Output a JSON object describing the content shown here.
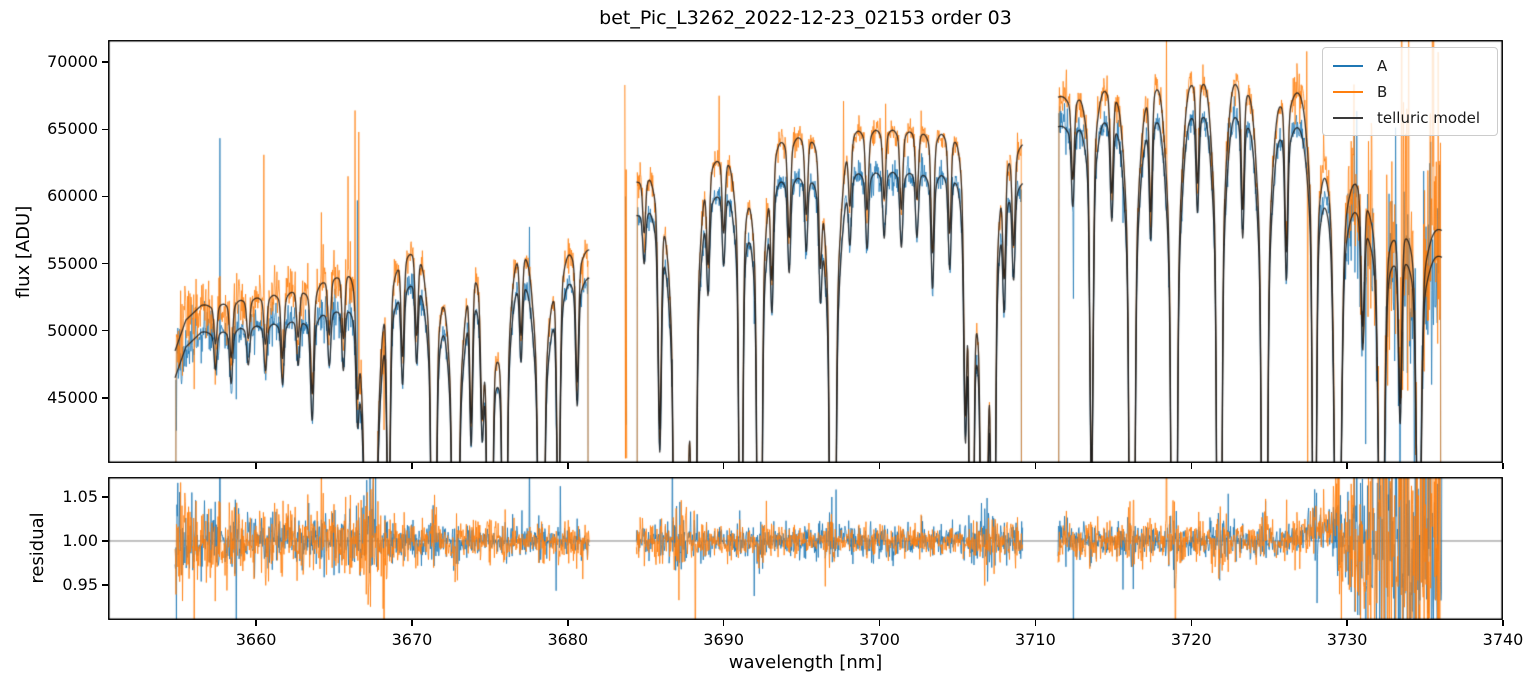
{
  "chart_data": {
    "type": "line",
    "title": "bet_Pic_L3262_2022-12-23_02153  order 03",
    "xlabel": "wavelength [nm]",
    "xlim": [
      3650.5,
      3740
    ],
    "xticks": {
      "values": [
        3660,
        3670,
        3680,
        3690,
        3700,
        3710,
        3720,
        3730,
        3740
      ],
      "labels": [
        "3660",
        "3670",
        "3680",
        "3690",
        "3700",
        "3710",
        "3720",
        "3730",
        "3740"
      ]
    },
    "panels": {
      "flux": {
        "ylabel": "flux [ADU]",
        "ylim": [
          40150,
          71650
        ],
        "yticks": {
          "values": [
            45000,
            50000,
            55000,
            60000,
            65000,
            70000
          ],
          "labels": [
            "45000",
            "50000",
            "55000",
            "60000",
            "65000",
            "70000"
          ]
        }
      },
      "residual": {
        "ylabel": "residual",
        "ylim": [
          0.9102,
          1.0727
        ],
        "yticks": {
          "values": [
            0.95,
            1.0,
            1.05
          ],
          "labels": [
            "0.95",
            "1.00",
            "1.05"
          ]
        },
        "hline": 1.0,
        "hline_color": "#808080"
      }
    },
    "series": [
      {
        "name": "A",
        "color": "#1f77b4",
        "lw": 0.8
      },
      {
        "name": "B",
        "color": "#ff7f0e",
        "lw": 0.8
      },
      {
        "name": "telluric model",
        "color": "#3a3a3a",
        "lw": 1.3
      }
    ],
    "sample_step_nm": 0.03,
    "segments": [
      {
        "range": [
          3654.8,
          3681.4
        ],
        "continuum_A": [
          [
            3654.8,
            46500
          ],
          [
            3655.5,
            48800
          ],
          [
            3656.5,
            49900
          ],
          [
            3658,
            50300
          ],
          [
            3660,
            50600
          ],
          [
            3662,
            51000
          ],
          [
            3664,
            51600
          ],
          [
            3666,
            52300
          ],
          [
            3668,
            53300
          ],
          [
            3670,
            54300
          ],
          [
            3671.5,
            54500
          ],
          [
            3673,
            54300
          ],
          [
            3675,
            54300
          ],
          [
            3677,
            54500
          ],
          [
            3679,
            54600
          ],
          [
            3680.5,
            54400
          ],
          [
            3681.4,
            54000
          ]
        ],
        "continuum_B": [
          [
            3654.8,
            48500
          ],
          [
            3655.5,
            50800
          ],
          [
            3656.5,
            51900
          ],
          [
            3658,
            52400
          ],
          [
            3660,
            52700
          ],
          [
            3662,
            53200
          ],
          [
            3664,
            54000
          ],
          [
            3666,
            55000
          ],
          [
            3668,
            55900
          ],
          [
            3670,
            56700
          ],
          [
            3671.5,
            56900
          ],
          [
            3673,
            56500
          ],
          [
            3675,
            56500
          ],
          [
            3677,
            56800
          ],
          [
            3679,
            56900
          ],
          [
            3680.5,
            56600
          ],
          [
            3681.4,
            56100
          ]
        ],
        "telluric_lines": [
          [
            3657.4,
            0.05,
            0.09
          ],
          [
            3658.4,
            0.07,
            0.09
          ],
          [
            3659.5,
            0.05,
            0.09
          ],
          [
            3660.6,
            0.06,
            0.09
          ],
          [
            3661.7,
            0.08,
            0.09
          ],
          [
            3662.7,
            0.06,
            0.09
          ],
          [
            3663.6,
            0.13,
            0.1
          ],
          [
            3664.7,
            0.07,
            0.09
          ],
          [
            3665.6,
            0.08,
            0.09
          ],
          [
            3666.5,
            0.1,
            0.09
          ],
          [
            3667.2,
            1.1,
            0.12
          ],
          [
            3667.55,
            0.9,
            0.1
          ],
          [
            3668.5,
            0.3,
            0.1
          ],
          [
            3669.4,
            0.12,
            0.09
          ],
          [
            3670.3,
            0.1,
            0.09
          ],
          [
            3671.4,
            0.75,
            0.11
          ],
          [
            3672.8,
            1.1,
            0.12
          ],
          [
            3673.8,
            0.18,
            0.09
          ],
          [
            3674.5,
            0.12,
            0.09
          ],
          [
            3675.0,
            0.85,
            0.11
          ],
          [
            3675.95,
            0.8,
            0.1
          ],
          [
            3677.0,
            0.1,
            0.09
          ],
          [
            3678.3,
            0.95,
            0.12
          ],
          [
            3679.4,
            0.3,
            0.1
          ],
          [
            3680.6,
            0.15,
            0.09
          ]
        ],
        "noise_sigma_A": [
          [
            3654.8,
            0.028
          ],
          [
            3656.5,
            0.02
          ],
          [
            3659,
            0.016
          ],
          [
            3663,
            0.014
          ],
          [
            3666,
            0.016
          ],
          [
            3669,
            0.011
          ],
          [
            3673,
            0.008
          ],
          [
            3678,
            0.007
          ],
          [
            3681.4,
            0.008
          ]
        ],
        "noise_sigma_B": [
          [
            3654.8,
            0.034
          ],
          [
            3656.5,
            0.026
          ],
          [
            3659,
            0.021
          ],
          [
            3663,
            0.018
          ],
          [
            3666,
            0.022
          ],
          [
            3669,
            0.013
          ],
          [
            3673,
            0.009
          ],
          [
            3678,
            0.008
          ],
          [
            3681.4,
            0.009
          ]
        ],
        "spike_prob": 0.008
      },
      {
        "range": [
          3684.4,
          3709.2
        ],
        "continuum_A": [
          [
            3684.4,
            58800
          ],
          [
            3685.3,
            59800
          ],
          [
            3686.3,
            59500
          ],
          [
            3688,
            60000
          ],
          [
            3690,
            60800
          ],
          [
            3692,
            61400
          ],
          [
            3694,
            61800
          ],
          [
            3696,
            62000
          ],
          [
            3698,
            62100
          ],
          [
            3700,
            62200
          ],
          [
            3702,
            62300
          ],
          [
            3704,
            62200
          ],
          [
            3706,
            62100
          ],
          [
            3708,
            61800
          ],
          [
            3709.2,
            61200
          ]
        ],
        "continuum_B": [
          [
            3684.4,
            61300
          ],
          [
            3685.3,
            62300
          ],
          [
            3686.3,
            62000
          ],
          [
            3688,
            62600
          ],
          [
            3690,
            63500
          ],
          [
            3692,
            64200
          ],
          [
            3694,
            64800
          ],
          [
            3696,
            65100
          ],
          [
            3698,
            65300
          ],
          [
            3700,
            65400
          ],
          [
            3702,
            65400
          ],
          [
            3704,
            65300
          ],
          [
            3706,
            65200
          ],
          [
            3708,
            64800
          ],
          [
            3709.2,
            64100
          ]
        ],
        "telluric_lines": [
          [
            3684.9,
            0.06,
            0.09
          ],
          [
            3685.9,
            0.25,
            0.1
          ],
          [
            3687.0,
            1.1,
            0.12
          ],
          [
            3687.5,
            0.95,
            0.1
          ],
          [
            3688.1,
            0.85,
            0.1
          ],
          [
            3689.0,
            0.1,
            0.09
          ],
          [
            3690.0,
            0.08,
            0.09
          ],
          [
            3691.1,
            0.55,
            0.1
          ],
          [
            3692.3,
            0.8,
            0.11
          ],
          [
            3693.1,
            0.12,
            0.09
          ],
          [
            3694.2,
            0.1,
            0.09
          ],
          [
            3695.3,
            0.08,
            0.09
          ],
          [
            3696.2,
            0.1,
            0.09
          ],
          [
            3697.0,
            1.05,
            0.12
          ],
          [
            3698.1,
            0.07,
            0.09
          ],
          [
            3699.2,
            0.08,
            0.09
          ],
          [
            3700.3,
            0.07,
            0.09
          ],
          [
            3701.4,
            0.08,
            0.09
          ],
          [
            3702.4,
            0.07,
            0.09
          ],
          [
            3703.4,
            0.12,
            0.09
          ],
          [
            3704.5,
            0.1,
            0.09
          ],
          [
            3705.5,
            0.2,
            0.09
          ],
          [
            3705.9,
            0.7,
            0.1
          ],
          [
            3706.7,
            1.1,
            0.12
          ],
          [
            3707.3,
            0.6,
            0.1
          ],
          [
            3708.0,
            0.12,
            0.09
          ],
          [
            3708.6,
            0.1,
            0.09
          ]
        ],
        "noise_sigma_A": [
          [
            3684.4,
            0.011
          ],
          [
            3686,
            0.009
          ],
          [
            3692,
            0.007
          ],
          [
            3699,
            0.01
          ],
          [
            3703,
            0.008
          ],
          [
            3708,
            0.009
          ],
          [
            3709.2,
            0.011
          ]
        ],
        "noise_sigma_B": [
          [
            3684.4,
            0.013
          ],
          [
            3686,
            0.01
          ],
          [
            3692,
            0.008
          ],
          [
            3700,
            0.008
          ],
          [
            3706,
            0.009
          ],
          [
            3709.2,
            0.012
          ]
        ],
        "spike_prob": 0.008
      },
      {
        "range": [
          3711.45,
          3736.1
        ],
        "continuum_A": [
          [
            3711.45,
            65200
          ],
          [
            3713,
            65900
          ],
          [
            3715,
            66400
          ],
          [
            3717,
            66700
          ],
          [
            3719,
            66900
          ],
          [
            3721,
            67000
          ],
          [
            3723,
            66800
          ],
          [
            3725,
            66400
          ],
          [
            3726.5,
            65600
          ],
          [
            3727.5,
            64800
          ],
          [
            3728.5,
            63800
          ],
          [
            3729.5,
            62500
          ],
          [
            3730.5,
            61200
          ],
          [
            3731.5,
            60000
          ],
          [
            3732.5,
            59000
          ],
          [
            3733.5,
            58000
          ],
          [
            3735,
            56500
          ],
          [
            3736.1,
            55500
          ]
        ],
        "continuum_B": [
          [
            3711.45,
            67400
          ],
          [
            3713,
            68200
          ],
          [
            3715,
            68800
          ],
          [
            3717,
            69200
          ],
          [
            3719,
            69400
          ],
          [
            3721,
            69500
          ],
          [
            3723,
            69300
          ],
          [
            3725,
            68900
          ],
          [
            3726.5,
            68200
          ],
          [
            3727.5,
            67400
          ],
          [
            3728.5,
            66200
          ],
          [
            3729.5,
            64800
          ],
          [
            3730.5,
            63400
          ],
          [
            3731.5,
            62200
          ],
          [
            3732.5,
            61100
          ],
          [
            3733.5,
            60000
          ],
          [
            3735,
            58500
          ],
          [
            3736.1,
            57500
          ]
        ],
        "telluric_lines": [
          [
            3712.4,
            0.08,
            0.09
          ],
          [
            3713.6,
            0.35,
            0.1
          ],
          [
            3714.9,
            0.1,
            0.09
          ],
          [
            3716.2,
            0.95,
            0.12
          ],
          [
            3717.4,
            0.12,
            0.09
          ],
          [
            3718.9,
            1.05,
            0.12
          ],
          [
            3720.4,
            0.1,
            0.09
          ],
          [
            3721.8,
            0.9,
            0.11
          ],
          [
            3723.3,
            0.12,
            0.09
          ],
          [
            3724.7,
            1.0,
            0.12
          ],
          [
            3726.1,
            0.15,
            0.09
          ],
          [
            3727.9,
            0.6,
            0.1
          ],
          [
            3729.4,
            0.55,
            0.18
          ],
          [
            3731.0,
            0.15,
            0.1
          ],
          [
            3732.2,
            0.5,
            0.16
          ],
          [
            3733.4,
            0.2,
            0.1
          ],
          [
            3734.6,
            0.4,
            0.14
          ]
        ],
        "noise_sigma_A": [
          [
            3711.45,
            0.012
          ],
          [
            3713,
            0.009
          ],
          [
            3720,
            0.009
          ],
          [
            3726,
            0.008
          ],
          [
            3729,
            0.012
          ],
          [
            3730.5,
            0.035
          ],
          [
            3732,
            0.055
          ],
          [
            3733.5,
            0.07
          ],
          [
            3735,
            0.085
          ],
          [
            3736.1,
            0.1
          ]
        ],
        "noise_sigma_B": [
          [
            3711.45,
            0.014
          ],
          [
            3713,
            0.011
          ],
          [
            3720,
            0.011
          ],
          [
            3726,
            0.01
          ],
          [
            3729,
            0.014
          ],
          [
            3730.5,
            0.045
          ],
          [
            3732,
            0.065
          ],
          [
            3733.5,
            0.08
          ],
          [
            3735,
            0.1
          ],
          [
            3736.1,
            0.12
          ]
        ],
        "spike_prob": 0.014
      }
    ],
    "isolated_feature": {
      "A": [
        [
          3683.7,
          60000
        ],
        [
          3683.74,
          43000
        ]
      ],
      "B": [
        [
          3683.66,
          68300
        ],
        [
          3683.7,
          40500
        ],
        [
          3683.74,
          62000
        ],
        [
          3683.78,
          40500
        ]
      ]
    },
    "spikes": [
      {
        "series": "B",
        "x": 3660.5,
        "flux": 63100
      },
      {
        "series": "B",
        "x": 3665.9,
        "flux": 61500
      },
      {
        "series": "B",
        "x": 3666.35,
        "flux": 66400
      },
      {
        "series": "B",
        "x": 3666.6,
        "flux": 64800
      },
      {
        "series": "A",
        "x": 3666.5,
        "flux": 59700
      },
      {
        "series": "B",
        "x": 3689.7,
        "flux": 67500
      },
      {
        "series": "B",
        "x": 3697.7,
        "flux": 67100
      },
      {
        "series": "B",
        "x": 3700.4,
        "flux": 66900
      },
      {
        "series": "B",
        "x": 3727.4,
        "flux": 70800
      },
      {
        "series": "B",
        "x": 3727.46,
        "flux": 39000
      }
    ],
    "residual_bump": {
      "center": 3728.5,
      "width": 1.1,
      "amp": 0.016
    }
  }
}
